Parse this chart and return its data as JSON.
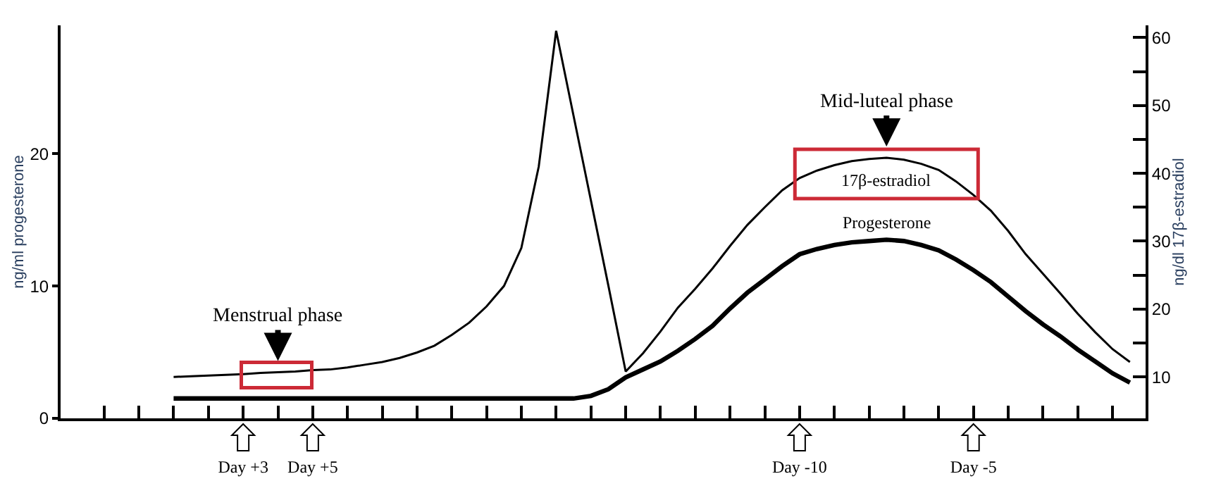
{
  "chart_data": {
    "type": "line",
    "categories": [
      null,
      null,
      null,
      null,
      null,
      null,
      null,
      null,
      null,
      null,
      "Day +3",
      null,
      null,
      null,
      "Day +5",
      null,
      null,
      null,
      null,
      null,
      null,
      null,
      null,
      null,
      null,
      null,
      null,
      null,
      null,
      null,
      null,
      null,
      null,
      null,
      null,
      null,
      null,
      null,
      null,
      null,
      null,
      null,
      "Day -10",
      null,
      null,
      null,
      null,
      null,
      null,
      null,
      null,
      null,
      "Day -5",
      null,
      null,
      null,
      null,
      null,
      null,
      null,
      null,
      null
    ],
    "ylim": [
      0,
      29.7
    ],
    "yticks": [
      0,
      10,
      20
    ],
    "y2lim": [
      3.9,
      61.8
    ],
    "y2ticks": [
      10,
      {
        "value": 15,
        "label": null
      },
      20,
      {
        "value": 25,
        "label": null
      },
      30,
      {
        "value": 35,
        "label": null
      },
      40,
      {
        "value": 45,
        "label": null
      },
      50,
      {
        "value": 55,
        "label": null
      },
      60
    ],
    "ylabel": "ng/ml progesterone",
    "y2label": "ng/dl 17β-estradiol",
    "legend": false,
    "marker": "none",
    "line_style": "solid",
    "series": [
      {
        "name": "17β-estradiol",
        "color": "#000000",
        "axis": "y2",
        "values": [
          null,
          null,
          null,
          null,
          null,
          null,
          10.0,
          10.1,
          10.2,
          10.3,
          10.4,
          10.6,
          10.7,
          10.8,
          11.0,
          11.1,
          11.4,
          11.8,
          12.2,
          12.8,
          13.6,
          14.6,
          16.2,
          18.0,
          20.4,
          23.4,
          29.0,
          41.0,
          61.0,
          48.5,
          36.0,
          23.5,
          10.8,
          13.5,
          16.7,
          20.2,
          23.0,
          26.0,
          29.3,
          32.4,
          35.0,
          37.5,
          39.3,
          40.4,
          41.2,
          41.8,
          42.1,
          42.3,
          42.0,
          41.4,
          40.5,
          38.8,
          36.8,
          34.5,
          31.5,
          28.1,
          25.2,
          22.3,
          19.3,
          16.6,
          14.1,
          12.2
        ]
      },
      {
        "name": "Progesterone",
        "color": "#000000",
        "values": [
          null,
          null,
          null,
          null,
          null,
          null,
          1.5,
          1.5,
          1.5,
          1.5,
          1.5,
          1.5,
          1.5,
          1.5,
          1.5,
          1.5,
          1.5,
          1.5,
          1.5,
          1.5,
          1.5,
          1.5,
          1.5,
          1.5,
          1.5,
          1.5,
          1.5,
          1.5,
          1.5,
          1.5,
          1.7,
          2.2,
          3.1,
          3.7,
          4.3,
          5.1,
          6.0,
          7.0,
          8.3,
          9.5,
          10.5,
          11.5,
          12.4,
          12.8,
          13.1,
          13.3,
          13.4,
          13.5,
          13.4,
          13.1,
          12.7,
          12.0,
          11.2,
          10.3,
          9.2,
          8.1,
          7.1,
          6.2,
          5.2,
          4.3,
          3.4,
          2.7
        ]
      }
    ],
    "annotations": [
      "Menstrual phase",
      "Mid-luteal phase"
    ]
  }
}
